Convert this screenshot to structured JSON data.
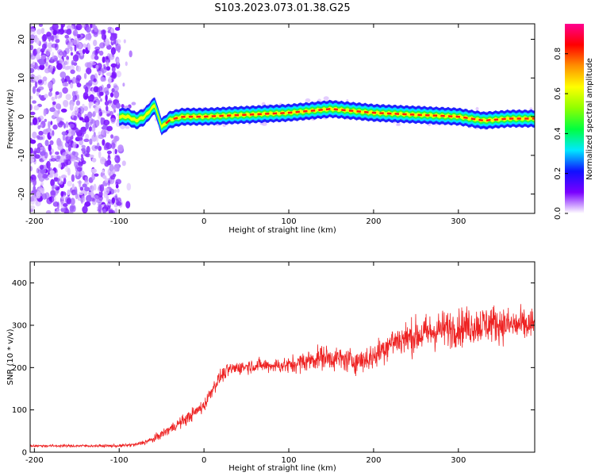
{
  "figure": {
    "title": "S103.2023.073.01.38.G25"
  },
  "chart_data": [
    {
      "type": "heatmap",
      "xlabel": "Height of straight line (km)",
      "ylabel": "Frequency (Hz)",
      "xlim": [
        -205,
        390
      ],
      "ylim": [
        -25,
        24
      ],
      "x_ticks": [
        -200,
        -100,
        0,
        100,
        200,
        300
      ],
      "y_ticks": [
        -20,
        -10,
        0,
        10,
        20
      ],
      "colorbar": {
        "label": "Normalized spectral amplitude",
        "ticks": [
          0.0,
          0.2,
          0.4,
          0.6,
          0.8
        ],
        "range": [
          0,
          0.95
        ],
        "stops": [
          "#ffffff",
          "#7a00ff",
          "#1010ff",
          "#00e8ff",
          "#00ff40",
          "#90ff00",
          "#ffff00",
          "#ff9000",
          "#ff0000",
          "#ff0090"
        ]
      },
      "noise_region_x": [
        -205,
        -100
      ],
      "ridge": {
        "x": [
          -100,
          -90,
          -80,
          -70,
          -62,
          -58,
          -54,
          -50,
          -46,
          -42,
          -35,
          -25,
          0,
          50,
          100,
          150,
          200,
          250,
          300,
          330,
          360,
          390
        ],
        "frequency": [
          0,
          0,
          -1,
          0,
          2,
          3,
          0,
          -2.5,
          -2,
          -1,
          -0.5,
          0,
          0,
          0.5,
          1,
          2,
          1,
          0.5,
          0,
          -1,
          -0.5,
          -0.5
        ]
      }
    },
    {
      "type": "line",
      "xlabel": "Height of straight line (km)",
      "ylabel": "SNR (10 * v/v)",
      "xlim": [
        -205,
        390
      ],
      "ylim": [
        0,
        450
      ],
      "x_ticks": [
        -200,
        -100,
        0,
        100,
        200,
        300
      ],
      "y_ticks": [
        0,
        100,
        200,
        300,
        400
      ],
      "color": "#ee2222",
      "series": [
        {
          "x": [
            -205,
            -150,
            -100,
            -80,
            -60,
            -40,
            -20,
            0,
            10,
            20,
            30,
            40,
            60,
            80,
            100,
            120,
            140,
            160,
            180,
            200,
            220,
            240,
            260,
            280,
            300,
            320,
            340,
            360,
            390
          ],
          "mean": [
            15,
            15,
            15,
            18,
            30,
            55,
            80,
            110,
            150,
            180,
            195,
            200,
            205,
            205,
            205,
            215,
            225,
            220,
            215,
            225,
            260,
            270,
            280,
            290,
            295,
            300,
            305,
            300,
            300
          ],
          "spread": [
            4,
            4,
            4,
            6,
            10,
            15,
            18,
            20,
            20,
            20,
            20,
            20,
            20,
            20,
            25,
            30,
            35,
            35,
            35,
            40,
            45,
            50,
            55,
            55,
            55,
            55,
            55,
            50,
            50
          ]
        }
      ]
    }
  ]
}
